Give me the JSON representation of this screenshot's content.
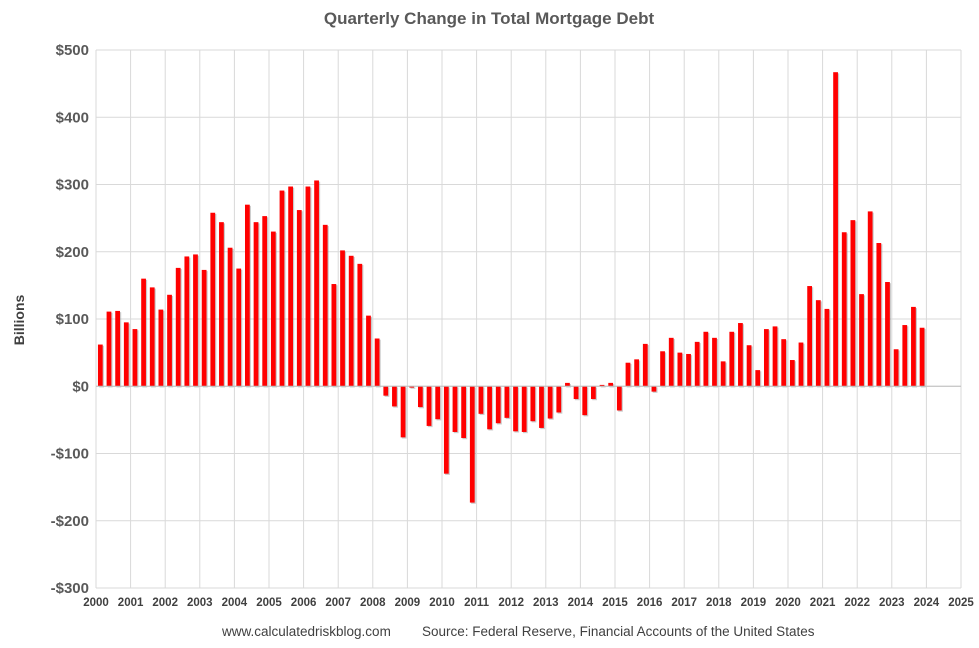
{
  "chart_data": {
    "type": "bar",
    "title": "Quarterly Change in Total Mortgage Debt",
    "xlabel": "",
    "ylabel": "Billions",
    "ylim": [
      -300,
      500
    ],
    "yticks": [
      500,
      400,
      300,
      200,
      100,
      0,
      -100,
      -200,
      -300
    ],
    "ytick_labels": [
      "$500",
      "$400",
      "$300",
      "$200",
      "$100",
      "$0",
      "-$100",
      "-$200",
      "-$300"
    ],
    "xlim": [
      2000,
      2025
    ],
    "xtick_labels": [
      "2000",
      "2001",
      "2002",
      "2003",
      "2004",
      "2005",
      "2006",
      "2007",
      "2008",
      "2009",
      "2010",
      "2011",
      "2012",
      "2013",
      "2014",
      "2015",
      "2016",
      "2017",
      "2018",
      "2019",
      "2020",
      "2021",
      "2022",
      "2023",
      "2024",
      "2025"
    ],
    "grid": true,
    "legend": false,
    "bar_color": "#ff0000",
    "categories": [
      "2000 Q1",
      "2000 Q2",
      "2000 Q3",
      "2000 Q4",
      "2001 Q1",
      "2001 Q2",
      "2001 Q3",
      "2001 Q4",
      "2002 Q1",
      "2002 Q2",
      "2002 Q3",
      "2002 Q4",
      "2003 Q1",
      "2003 Q2",
      "2003 Q3",
      "2003 Q4",
      "2004 Q1",
      "2004 Q2",
      "2004 Q3",
      "2004 Q4",
      "2005 Q1",
      "2005 Q2",
      "2005 Q3",
      "2005 Q4",
      "2006 Q1",
      "2006 Q2",
      "2006 Q3",
      "2006 Q4",
      "2007 Q1",
      "2007 Q2",
      "2007 Q3",
      "2007 Q4",
      "2008 Q1",
      "2008 Q2",
      "2008 Q3",
      "2008 Q4",
      "2009 Q1",
      "2009 Q2",
      "2009 Q3",
      "2009 Q4",
      "2010 Q1",
      "2010 Q2",
      "2010 Q3",
      "2010 Q4",
      "2011 Q1",
      "2011 Q2",
      "2011 Q3",
      "2011 Q4",
      "2012 Q1",
      "2012 Q2",
      "2012 Q3",
      "2012 Q4",
      "2013 Q1",
      "2013 Q2",
      "2013 Q3",
      "2013 Q4",
      "2014 Q1",
      "2014 Q2",
      "2014 Q3",
      "2014 Q4",
      "2015 Q1",
      "2015 Q2",
      "2015 Q3",
      "2015 Q4",
      "2016 Q1",
      "2016 Q2",
      "2016 Q3",
      "2016 Q4",
      "2017 Q1",
      "2017 Q2",
      "2017 Q3",
      "2017 Q4",
      "2018 Q1",
      "2018 Q2",
      "2018 Q3",
      "2018 Q4",
      "2019 Q1",
      "2019 Q2",
      "2019 Q3",
      "2019 Q4",
      "2020 Q1",
      "2020 Q2",
      "2020 Q3",
      "2020 Q4",
      "2021 Q1",
      "2021 Q2",
      "2021 Q3",
      "2021 Q4",
      "2022 Q1",
      "2022 Q2",
      "2022 Q3",
      "2022 Q4",
      "2023 Q1",
      "2023 Q2",
      "2023 Q3",
      "2023 Q4"
    ],
    "values": [
      62,
      111,
      112,
      95,
      85,
      160,
      147,
      114,
      136,
      176,
      193,
      196,
      173,
      258,
      244,
      206,
      175,
      270,
      244,
      253,
      230,
      291,
      297,
      262,
      297,
      306,
      240,
      152,
      202,
      194,
      182,
      105,
      71,
      -14,
      -30,
      -76,
      -2,
      -31,
      -59,
      -49,
      -130,
      -68,
      -77,
      -173,
      -41,
      -64,
      -55,
      -47,
      -67,
      -68,
      -52,
      -62,
      -48,
      -39,
      5,
      -19,
      -43,
      -19,
      2,
      5,
      -36,
      35,
      40,
      63,
      -8,
      52,
      72,
      50,
      48,
      66,
      81,
      72,
      37,
      81,
      94,
      61,
      24,
      85,
      89,
      70,
      39,
      65,
      149,
      128,
      115,
      467,
      229,
      247,
      137,
      260,
      213,
      155,
      55,
      91,
      118,
      87
    ]
  },
  "footer": {
    "website": "www.calculatedriskblog.com",
    "source": "Source: Federal Reserve, Financial Accounts of the United States"
  }
}
